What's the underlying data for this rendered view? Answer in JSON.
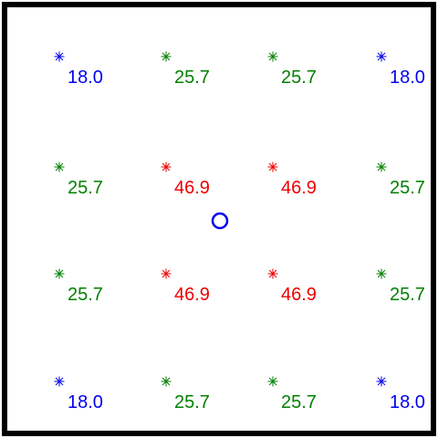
{
  "colors": {
    "low": "#0000ee",
    "mid": "#008000",
    "high": "#ee0000",
    "frame": "#000000",
    "marker": "#0000ee"
  },
  "marker_icon": "asterisk-marker",
  "source_icon": "circle-marker",
  "grid": {
    "rows": [
      [
        {
          "value": "18.0",
          "level": "low"
        },
        {
          "value": "25.7",
          "level": "mid"
        },
        {
          "value": "25.7",
          "level": "mid"
        },
        {
          "value": "18.0",
          "level": "low"
        }
      ],
      [
        {
          "value": "25.7",
          "level": "mid"
        },
        {
          "value": "46.9",
          "level": "high"
        },
        {
          "value": "46.9",
          "level": "high"
        },
        {
          "value": "25.7",
          "level": "mid"
        }
      ],
      [
        {
          "value": "25.7",
          "level": "mid"
        },
        {
          "value": "46.9",
          "level": "high"
        },
        {
          "value": "46.9",
          "level": "high"
        },
        {
          "value": "25.7",
          "level": "mid"
        }
      ],
      [
        {
          "value": "18.0",
          "level": "low"
        },
        {
          "value": "25.7",
          "level": "mid"
        },
        {
          "value": "25.7",
          "level": "mid"
        },
        {
          "value": "18.0",
          "level": "low"
        }
      ]
    ]
  }
}
